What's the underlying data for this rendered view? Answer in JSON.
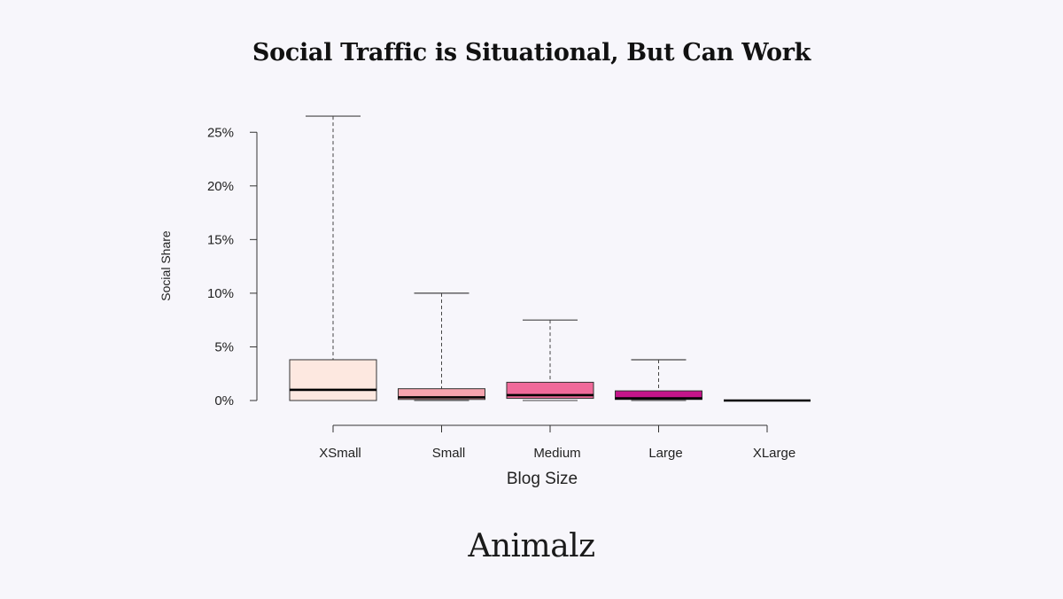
{
  "chart_data": {
    "type": "boxplot",
    "title": "Social Traffic is Situational, But Can Work",
    "xlabel": "Blog Size",
    "ylabel": "Social Share",
    "ylim": [
      0,
      26.5
    ],
    "yticks": [
      0,
      5,
      10,
      15,
      20,
      25
    ],
    "ytick_labels": [
      "0%",
      "5%",
      "10%",
      "15%",
      "20%",
      "25%"
    ],
    "grid": false,
    "legend": "none",
    "categories": [
      "XSmall",
      "Small",
      "Medium",
      "Large",
      "XLarge"
    ],
    "boxes": [
      {
        "category": "XSmall",
        "whisker_low": 0,
        "q1": 0,
        "median": 1.0,
        "q3": 3.8,
        "whisker_high": 26.5,
        "color": "#fde8e0"
      },
      {
        "category": "Small",
        "whisker_low": 0,
        "q1": 0.1,
        "median": 0.3,
        "q3": 1.1,
        "whisker_high": 10.0,
        "color": "#f5a3ae"
      },
      {
        "category": "Medium",
        "whisker_low": 0,
        "q1": 0.2,
        "median": 0.5,
        "q3": 1.7,
        "whisker_high": 7.5,
        "color": "#f06a9a"
      },
      {
        "category": "Large",
        "whisker_low": 0,
        "q1": 0.1,
        "median": 0.2,
        "q3": 0.9,
        "whisker_high": 3.8,
        "color": "#c4158a"
      },
      {
        "category": "XLarge",
        "whisker_low": 0,
        "q1": 0,
        "median": 0,
        "q3": 0,
        "whisker_high": 0,
        "color": "#7a0f5c"
      }
    ]
  },
  "brand": {
    "logo_text": "Animalz"
  }
}
